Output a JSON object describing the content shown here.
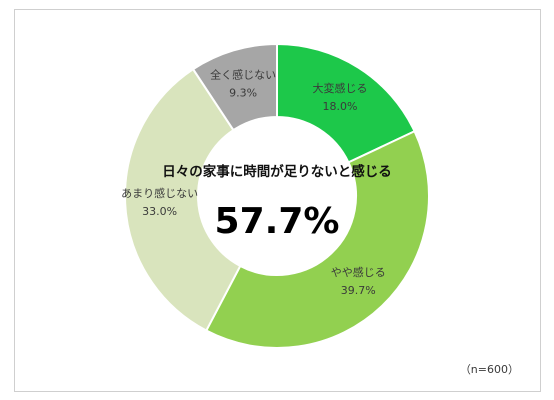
{
  "chart_data": {
    "type": "pie",
    "donut": true,
    "slices": [
      {
        "label": "大変感じる",
        "value": 18.0,
        "value_text": "18.0%",
        "color": "#1dc84a"
      },
      {
        "label": "やや感じる",
        "value": 39.7,
        "value_text": "39.7%",
        "color": "#92d050"
      },
      {
        "label": "あまり感じない",
        "value": 33.0,
        "value_text": "33.0%",
        "color": "#d9e4bd"
      },
      {
        "label": "全く感じない",
        "value": 9.3,
        "value_text": "9.3%",
        "color": "#a6a6a6"
      }
    ],
    "center_caption": "日々の家事に時間が足りないと感じる",
    "center_value": "57.7%",
    "sample_size": "（n=600）",
    "legend": "none"
  }
}
